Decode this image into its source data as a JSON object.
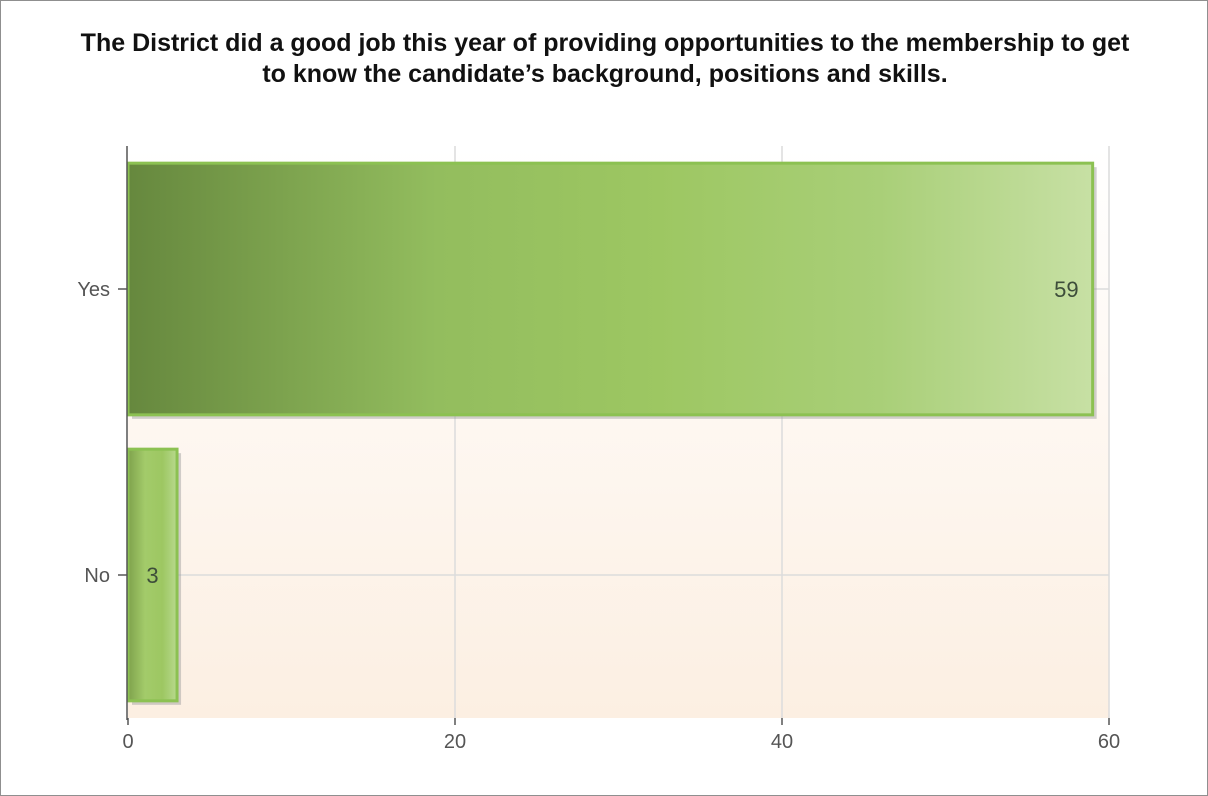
{
  "chart_data": {
    "type": "bar",
    "orientation": "horizontal",
    "title": "The District did a good job this year of providing opportunities to the membership to get to know the candidate’s background, positions and skills.",
    "xlabel": "",
    "ylabel": "",
    "categories": [
      "No",
      "Yes"
    ],
    "values": [
      3,
      59
    ],
    "xlim": [
      0,
      60
    ],
    "x_ticks": [
      0,
      20,
      40,
      60
    ],
    "grid": true,
    "legend": "none",
    "colors": {
      "bar_dark": "#66883e",
      "bar_mid": "#9dc762",
      "bar_light": "#c3dd9e",
      "bar_border": "#8cc152",
      "background_top": "#ffffff",
      "background_bottom": "#fcefe2",
      "grid": "#dcdcdc"
    }
  }
}
